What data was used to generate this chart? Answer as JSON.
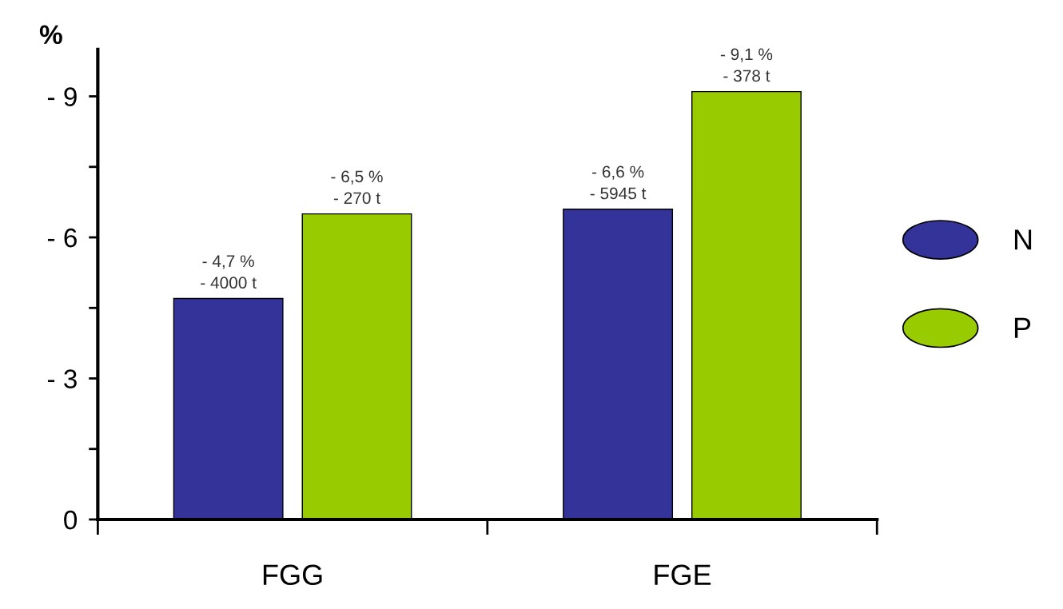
{
  "chart_data": {
    "type": "bar",
    "ylabel": "%",
    "categories": [
      "FGG",
      "FGE"
    ],
    "series": [
      {
        "name": "N",
        "color": "#333399",
        "values": [
          -4.7,
          -6.6
        ],
        "value_labels": [
          "- 4,7 %\n- 4000 t",
          "- 6,6 %\n- 5945 t"
        ]
      },
      {
        "name": "P",
        "color": "#99cc00",
        "values": [
          -6.5,
          -9.1
        ],
        "value_labels": [
          "- 6,5 %\n- 270 t",
          "- 9,1 %\n- 378 t"
        ]
      }
    ],
    "ylim": [
      0,
      -10
    ],
    "yticks": [
      {
        "value": 0,
        "label": "0"
      },
      {
        "value": -1.5,
        "label": null
      },
      {
        "value": -3,
        "label": "- 3"
      },
      {
        "value": -4.5,
        "label": null
      },
      {
        "value": -6,
        "label": "- 6"
      },
      {
        "value": -7.5,
        "label": null
      },
      {
        "value": -9,
        "label": "- 9"
      }
    ],
    "legend": "right",
    "grid": false
  }
}
